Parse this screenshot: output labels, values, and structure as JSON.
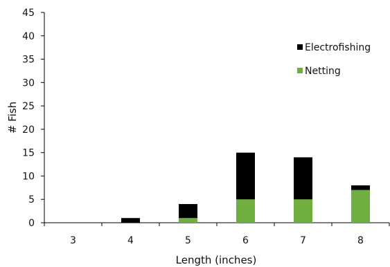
{
  "chart_data": {
    "type": "bar",
    "stacked": true,
    "title": "",
    "xlabel": "Length (inches)",
    "ylabel": "# Fish",
    "categories": [
      "3",
      "4",
      "5",
      "6",
      "7",
      "8"
    ],
    "series": [
      {
        "name": "Netting",
        "color": "#6fae3f",
        "values": [
          0,
          0,
          1,
          5,
          5,
          7
        ]
      },
      {
        "name": "Electrofishing",
        "color": "#000000",
        "values": [
          0,
          1,
          3,
          10,
          9,
          1
        ]
      }
    ],
    "ylim": [
      0,
      45
    ],
    "yticks": [
      0,
      5,
      10,
      15,
      20,
      25,
      30,
      35,
      40,
      45
    ],
    "grid": false,
    "legend": {
      "position": "top-right",
      "order": [
        "Electrofishing",
        "Netting"
      ]
    }
  }
}
